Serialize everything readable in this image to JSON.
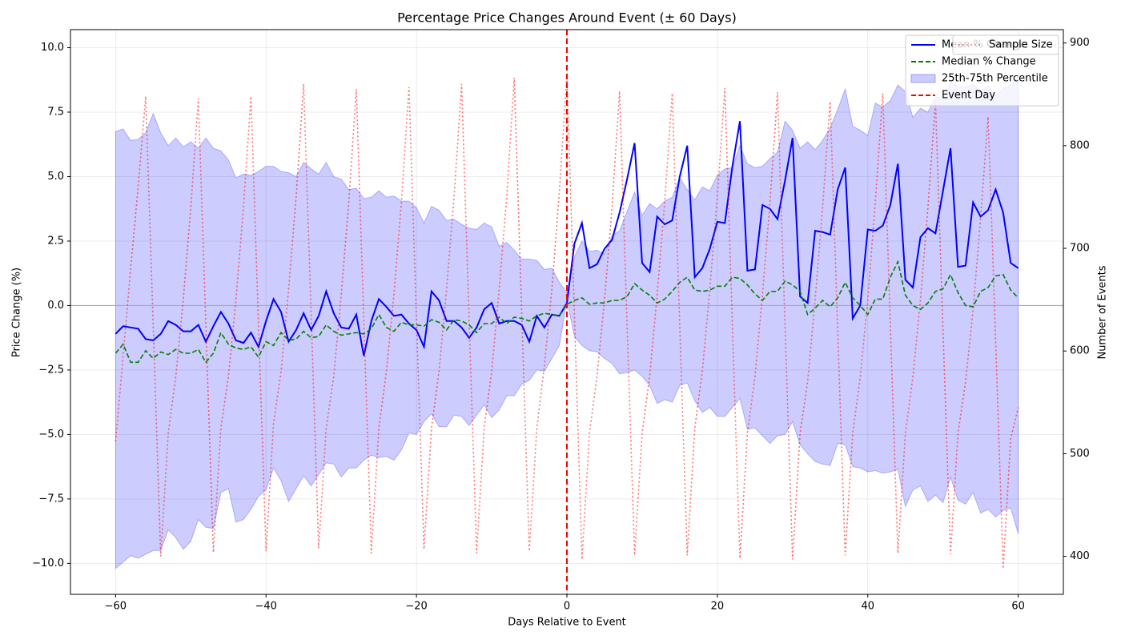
{
  "chart_data": {
    "type": "line",
    "title": "Percentage Price Changes Around Event (± 60 Days)",
    "x_label": "Days Relative to Event",
    "y_label": "Price Change (%)",
    "y2_label": "Number of Events",
    "x": [
      -60,
      -59,
      -58,
      -57,
      -56,
      -55,
      -54,
      -53,
      -52,
      -51,
      -50,
      -49,
      -48,
      -47,
      -46,
      -45,
      -44,
      -43,
      -42,
      -41,
      -40,
      -39,
      -38,
      -37,
      -36,
      -35,
      -34,
      -33,
      -32,
      -31,
      -30,
      -29,
      -28,
      -27,
      -26,
      -25,
      -24,
      -23,
      -22,
      -21,
      -20,
      -19,
      -18,
      -17,
      -16,
      -15,
      -14,
      -13,
      -12,
      -11,
      -10,
      -9,
      -8,
      -7,
      -6,
      -5,
      -4,
      -3,
      -2,
      -1,
      0,
      1,
      2,
      3,
      4,
      5,
      6,
      7,
      8,
      9,
      10,
      11,
      12,
      13,
      14,
      15,
      16,
      17,
      18,
      19,
      20,
      21,
      22,
      23,
      24,
      25,
      26,
      27,
      28,
      29,
      30,
      31,
      32,
      33,
      34,
      35,
      36,
      37,
      38,
      39,
      40,
      41,
      42,
      43,
      44,
      45,
      46,
      47,
      48,
      49,
      50,
      51,
      52,
      53,
      54,
      55,
      56,
      57,
      58,
      59,
      60
    ],
    "series": [
      {
        "name": "Mean % Change",
        "color": "#0000ff",
        "dash": "solid",
        "values": [
          -1.1,
          -0.8,
          -0.85,
          -0.9,
          -1.3,
          -1.35,
          -1.1,
          -0.6,
          -0.75,
          -1.0,
          -1.0,
          -0.75,
          -1.4,
          -0.8,
          -0.25,
          -0.7,
          -1.35,
          -1.45,
          -1.05,
          -1.6,
          -0.6,
          0.25,
          -0.25,
          -1.4,
          -0.95,
          -0.3,
          -0.95,
          -0.4,
          0.55,
          -0.3,
          -0.85,
          -0.9,
          -0.35,
          -1.95,
          -0.6,
          0.25,
          -0.05,
          -0.4,
          -0.35,
          -0.7,
          -0.95,
          -1.6,
          0.55,
          0.2,
          -0.6,
          -0.6,
          -0.85,
          -1.25,
          -0.85,
          -0.15,
          0.1,
          -0.7,
          -0.6,
          -0.6,
          -0.75,
          -1.4,
          -0.4,
          -0.85,
          -0.35,
          -0.4,
          0.1,
          2.4,
          3.2,
          1.45,
          1.6,
          2.2,
          2.55,
          3.6,
          4.9,
          6.3,
          1.65,
          1.3,
          3.45,
          3.15,
          3.3,
          5.0,
          6.2,
          1.1,
          1.45,
          2.2,
          3.25,
          3.2,
          5.4,
          7.15,
          1.35,
          1.4,
          3.9,
          3.75,
          3.35,
          4.85,
          6.5,
          0.35,
          0.1,
          2.9,
          2.85,
          2.75,
          4.5,
          5.35,
          -0.5,
          0.0,
          2.95,
          2.9,
          3.1,
          3.9,
          5.5,
          1.0,
          0.7,
          2.65,
          3.0,
          2.8,
          4.45,
          6.1,
          1.5,
          1.55,
          4.0,
          3.45,
          3.7,
          4.5,
          3.6,
          1.65,
          1.45
        ]
      },
      {
        "name": "Median % Change",
        "color": "#008000",
        "dash": "dashed",
        "values": [
          -1.85,
          -1.5,
          -2.2,
          -2.2,
          -1.75,
          -2.05,
          -1.8,
          -1.9,
          -1.7,
          -1.85,
          -1.85,
          -1.7,
          -2.2,
          -1.85,
          -1.05,
          -1.5,
          -1.65,
          -1.7,
          -1.6,
          -2.0,
          -1.4,
          -1.55,
          -1.05,
          -1.35,
          -1.3,
          -1.0,
          -1.25,
          -1.2,
          -0.75,
          -1.0,
          -1.15,
          -1.1,
          -1.05,
          -1.1,
          -0.9,
          -0.35,
          -0.85,
          -1.0,
          -0.65,
          -0.75,
          -0.75,
          -0.8,
          -0.55,
          -0.65,
          -0.95,
          -0.55,
          -0.6,
          -0.75,
          -1.05,
          -0.7,
          -0.7,
          -0.45,
          -0.7,
          -0.45,
          -0.5,
          -0.6,
          -0.4,
          -0.3,
          -0.35,
          -0.4,
          0.05,
          0.2,
          0.3,
          0.05,
          0.1,
          0.1,
          0.2,
          0.2,
          0.35,
          0.85,
          0.6,
          0.4,
          0.1,
          0.25,
          0.55,
          0.9,
          1.1,
          0.6,
          0.55,
          0.6,
          0.75,
          0.75,
          1.1,
          1.05,
          0.8,
          0.45,
          0.2,
          0.55,
          0.55,
          0.95,
          0.8,
          0.55,
          -0.35,
          -0.1,
          0.2,
          -0.05,
          0.3,
          0.9,
          0.3,
          0.0,
          -0.35,
          0.25,
          0.25,
          1.1,
          1.7,
          0.4,
          0.0,
          -0.15,
          0.1,
          0.55,
          0.65,
          1.2,
          0.5,
          0.0,
          -0.05,
          0.55,
          0.7,
          1.15,
          1.2,
          0.6,
          0.3
        ]
      },
      {
        "name": "Sample Size",
        "color": "#ff0000",
        "dash": "dotted",
        "axis": "y2",
        "values": [
          512,
          595,
          680,
          760,
          848,
          625,
          400,
          520,
          575,
          650,
          740,
          846,
          625,
          404,
          525,
          575,
          650,
          740,
          848,
          625,
          405,
          530,
          580,
          660,
          750,
          860,
          635,
          408,
          525,
          575,
          655,
          745,
          855,
          630,
          403,
          525,
          580,
          655,
          745,
          857,
          630,
          407,
          525,
          580,
          660,
          750,
          860,
          630,
          403,
          525,
          580,
          660,
          750,
          866,
          635,
          405,
          525,
          585,
          660,
          755,
          870,
          635,
          397,
          520,
          575,
          650,
          740,
          853,
          625,
          401,
          520,
          575,
          655,
          745,
          851,
          625,
          401,
          525,
          580,
          660,
          750,
          856,
          625,
          398,
          520,
          575,
          655,
          745,
          852,
          625,
          397,
          520,
          570,
          650,
          740,
          843,
          620,
          401,
          520,
          575,
          650,
          745,
          851,
          625,
          403,
          520,
          575,
          650,
          740,
          843,
          620,
          402,
          520,
          570,
          640,
          730,
          828,
          610,
          388,
          515,
          545
        ]
      }
    ],
    "band": {
      "name": "25th-75th Percentile",
      "color": "#0000ff",
      "upper": [
        6.75,
        6.85,
        6.4,
        6.45,
        6.7,
        7.45,
        6.7,
        6.2,
        6.5,
        6.15,
        6.35,
        6.1,
        6.5,
        6.1,
        6.0,
        5.65,
        4.95,
        5.1,
        5.05,
        5.2,
        5.4,
        5.4,
        5.2,
        5.15,
        5.0,
        5.55,
        5.3,
        5.1,
        5.55,
        5.0,
        4.9,
        4.5,
        4.55,
        4.15,
        4.2,
        4.45,
        4.2,
        4.25,
        4.05,
        4.05,
        3.8,
        3.2,
        3.85,
        3.7,
        3.3,
        3.35,
        3.15,
        3.0,
        2.95,
        3.2,
        3.05,
        2.3,
        2.45,
        2.15,
        1.8,
        1.8,
        1.75,
        1.4,
        1.45,
        0.9,
        0.5,
        1.9,
        2.5,
        2.1,
        2.15,
        2.0,
        2.7,
        2.9,
        3.65,
        4.4,
        3.5,
        3.95,
        3.75,
        4.05,
        4.2,
        4.95,
        4.5,
        4.1,
        4.6,
        4.45,
        5.05,
        5.3,
        5.35,
        6.2,
        5.5,
        5.35,
        5.4,
        5.7,
        5.95,
        7.15,
        6.8,
        6.1,
        6.35,
        6.05,
        6.4,
        6.9,
        7.6,
        8.4,
        6.95,
        6.8,
        6.6,
        7.85,
        7.7,
        7.95,
        8.55,
        8.3,
        7.3,
        7.65,
        7.5,
        8.1,
        8.0,
        8.65,
        8.5,
        8.45,
        8.6,
        8.3,
        8.5,
        8.15,
        8.4,
        8.55,
        8.9
      ],
      "lower": [
        -10.2,
        -9.95,
        -9.7,
        -9.8,
        -9.65,
        -9.5,
        -9.5,
        -8.7,
        -9.0,
        -9.45,
        -9.15,
        -8.3,
        -8.6,
        -8.65,
        -7.25,
        -7.1,
        -8.4,
        -8.3,
        -7.9,
        -7.4,
        -7.15,
        -6.3,
        -6.8,
        -7.6,
        -7.1,
        -6.6,
        -7.0,
        -6.55,
        -6.1,
        -6.15,
        -6.65,
        -6.3,
        -6.3,
        -6.0,
        -5.8,
        -5.9,
        -5.85,
        -6.0,
        -5.6,
        -4.95,
        -5.0,
        -4.5,
        -4.2,
        -4.7,
        -4.7,
        -4.25,
        -4.3,
        -4.65,
        -4.25,
        -3.85,
        -4.35,
        -4.05,
        -3.5,
        -3.5,
        -3.05,
        -2.9,
        -2.5,
        -2.55,
        -2.05,
        -1.55,
        0.2,
        -1.2,
        -1.55,
        -1.75,
        -1.8,
        -2.05,
        -2.25,
        -2.65,
        -2.6,
        -2.5,
        -2.75,
        -3.1,
        -3.8,
        -3.65,
        -3.75,
        -3.1,
        -3.0,
        -3.7,
        -4.15,
        -3.95,
        -4.3,
        -4.3,
        -3.95,
        -3.6,
        -4.8,
        -4.75,
        -5.05,
        -5.35,
        -5.05,
        -5.0,
        -4.5,
        -5.4,
        -5.75,
        -6.05,
        -6.15,
        -6.2,
        -5.35,
        -5.4,
        -6.25,
        -6.3,
        -6.45,
        -6.4,
        -6.5,
        -6.45,
        -6.35,
        -7.8,
        -7.15,
        -7.0,
        -7.6,
        -7.35,
        -7.65,
        -6.65,
        -7.55,
        -7.7,
        -7.25,
        -8.05,
        -7.9,
        -8.2,
        -7.95,
        -7.85,
        -8.85
      ]
    },
    "event": {
      "name": "Event Day",
      "color": "#ff0000",
      "x": 0
    },
    "reference_line": 0,
    "xlim": [
      -66,
      66
    ],
    "ylim": [
      -11.2,
      10.7
    ],
    "y2lim": [
      363,
      913
    ],
    "xticks": [
      {
        "value": -60,
        "label": "−60"
      },
      {
        "value": -40,
        "label": "−40"
      },
      {
        "value": -20,
        "label": "−20"
      },
      0,
      20,
      40,
      60
    ],
    "yticks": [
      {
        "value": -10,
        "label": "−10.0"
      },
      {
        "value": -7.5,
        "label": "−7.5"
      },
      {
        "value": -5,
        "label": "−5.0"
      },
      {
        "value": -2.5,
        "label": "−2.5"
      },
      {
        "value": 0,
        "label": "0.0"
      },
      2.5,
      {
        "value": 5,
        "label": "5.0"
      },
      7.5,
      {
        "value": 10,
        "label": "10.0"
      }
    ],
    "y2ticks": [
      400,
      500,
      600,
      700,
      800,
      900
    ],
    "grid": true,
    "legend": "upper right"
  }
}
